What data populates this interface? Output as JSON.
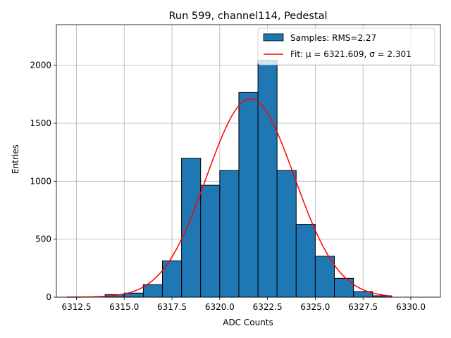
{
  "chart_data": {
    "type": "bar",
    "title": "Run 599, channel114, Pedestal",
    "xlabel": "ADC Counts",
    "ylabel": "Entries",
    "xlim": [
      6311.45,
      6331.55
    ],
    "ylim": [
      0,
      2350
    ],
    "grid": true,
    "legend_position": "top-right",
    "bin_width": 1,
    "bins": [
      {
        "left": 6314,
        "count": 22
      },
      {
        "left": 6315,
        "count": 35
      },
      {
        "left": 6316,
        "count": 108
      },
      {
        "left": 6317,
        "count": 313
      },
      {
        "left": 6318,
        "count": 1198
      },
      {
        "left": 6319,
        "count": 965
      },
      {
        "left": 6320,
        "count": 1092
      },
      {
        "left": 6321,
        "count": 1765
      },
      {
        "left": 6322,
        "count": 2043
      },
      {
        "left": 6323,
        "count": 1092
      },
      {
        "left": 6324,
        "count": 628
      },
      {
        "left": 6325,
        "count": 353
      },
      {
        "left": 6326,
        "count": 162
      },
      {
        "left": 6327,
        "count": 48
      },
      {
        "left": 6328,
        "count": 12
      }
    ],
    "x_ticks": [
      "6312.5",
      "6315.0",
      "6317.5",
      "6320.0",
      "6322.5",
      "6325.0",
      "6327.5",
      "6330.0"
    ],
    "x_tick_values": [
      6312.5,
      6315.0,
      6317.5,
      6320.0,
      6322.5,
      6325.0,
      6327.5,
      6330.0
    ],
    "y_ticks": [
      "0",
      "500",
      "1000",
      "1500",
      "2000"
    ],
    "y_tick_values": [
      0,
      500,
      1000,
      1500,
      2000
    ],
    "fit": {
      "mu": 6321.609,
      "sigma": 2.301,
      "amplitude": 1710,
      "x_range": [
        6312,
        6329
      ]
    },
    "series": [
      {
        "name": "Samples: RMS=2.27",
        "kind": "histogram",
        "color": "#1f77b4"
      },
      {
        "name": "Fit: μ = 6321.609, σ = 2.301",
        "kind": "line",
        "color": "#ff0000"
      }
    ],
    "colors": {
      "bar_fill": "#1f77b4",
      "bar_edge": "#000000",
      "fit_line": "#ff0000",
      "grid": "#b0b0b0"
    }
  }
}
